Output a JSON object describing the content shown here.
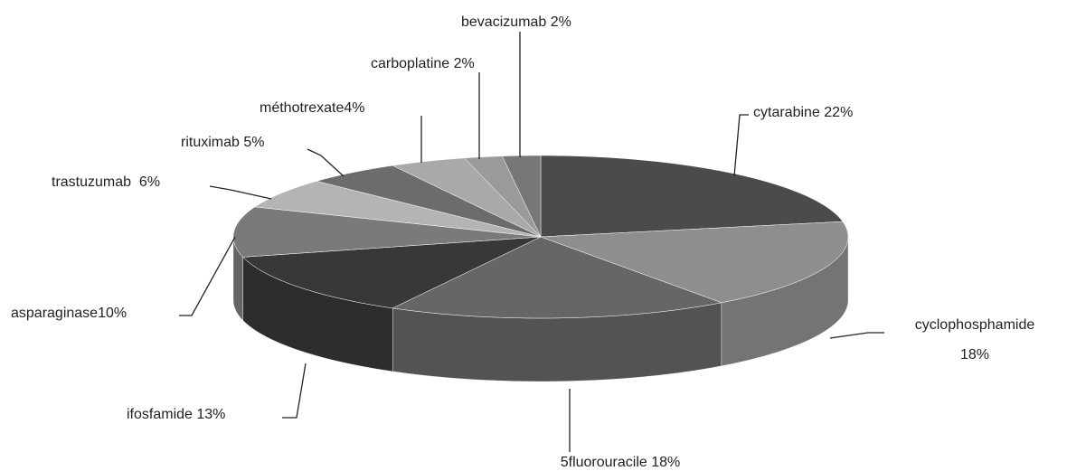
{
  "chart_data": {
    "type": "pie3d",
    "values": [
      22,
      18,
      18,
      13,
      10,
      6,
      5,
      4,
      2,
      2
    ],
    "value_labels": [
      [
        "cytarabine 22%"
      ],
      [
        "cyclophosphamide",
        "18%"
      ],
      [
        "5fluorouracile 18%"
      ],
      [
        "ifosfamide 13%"
      ],
      [
        "asparaginase10%"
      ],
      [
        "trastuzumab  6%"
      ],
      [
        "rituximab 5%"
      ],
      [
        "méthotrexate4%"
      ],
      [
        "carboplatine 2%"
      ],
      [
        "bevacizumab 2%"
      ]
    ],
    "colors": [
      "#4b4b4b",
      "#8e8e8e",
      "#666666",
      "#383838",
      "#7a7a7a",
      "#b4b4b4",
      "#6c6c6c",
      "#a9a9a9",
      "#9a9a9a",
      "#777777"
    ]
  }
}
